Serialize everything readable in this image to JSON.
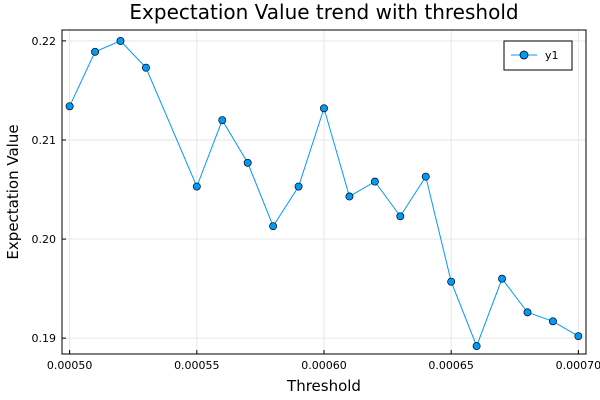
{
  "chart_data": {
    "type": "line",
    "title": "Expectation Value trend with threshold",
    "xlabel": "Threshold",
    "ylabel": "Expectation Value",
    "xlim": [
      0.000497,
      0.000703
    ],
    "ylim": [
      0.1884,
      0.2211
    ],
    "x_ticks": [
      0.0005,
      0.00055,
      0.0006,
      0.00065,
      0.0007
    ],
    "x_tick_labels": [
      "0.00050",
      "0.00055",
      "0.00060",
      "0.00065",
      "0.00070"
    ],
    "y_ticks": [
      0.19,
      0.2,
      0.21,
      0.22
    ],
    "y_tick_labels": [
      "0.19",
      "0.20",
      "0.21",
      "0.22"
    ],
    "grid": true,
    "legend_position": "top-right",
    "series": [
      {
        "name": "y1",
        "color": "#009AFA",
        "marker": "circle",
        "x": [
          0.0005,
          0.00051,
          0.00052,
          0.00053,
          0.00055,
          0.00056,
          0.00057,
          0.00058,
          0.00059,
          0.0006,
          0.00061,
          0.00062,
          0.00063,
          0.00064,
          0.00065,
          0.00066,
          0.00067,
          0.00068,
          0.00069,
          0.0007
        ],
        "y": [
          0.2134,
          0.2189,
          0.22,
          0.2173,
          0.2053,
          0.212,
          0.2077,
          0.2013,
          0.2053,
          0.2132,
          0.2043,
          0.2058,
          0.2023,
          0.2063,
          0.1957,
          0.1892,
          0.196,
          0.1926,
          0.1917,
          0.1902
        ]
      }
    ]
  }
}
